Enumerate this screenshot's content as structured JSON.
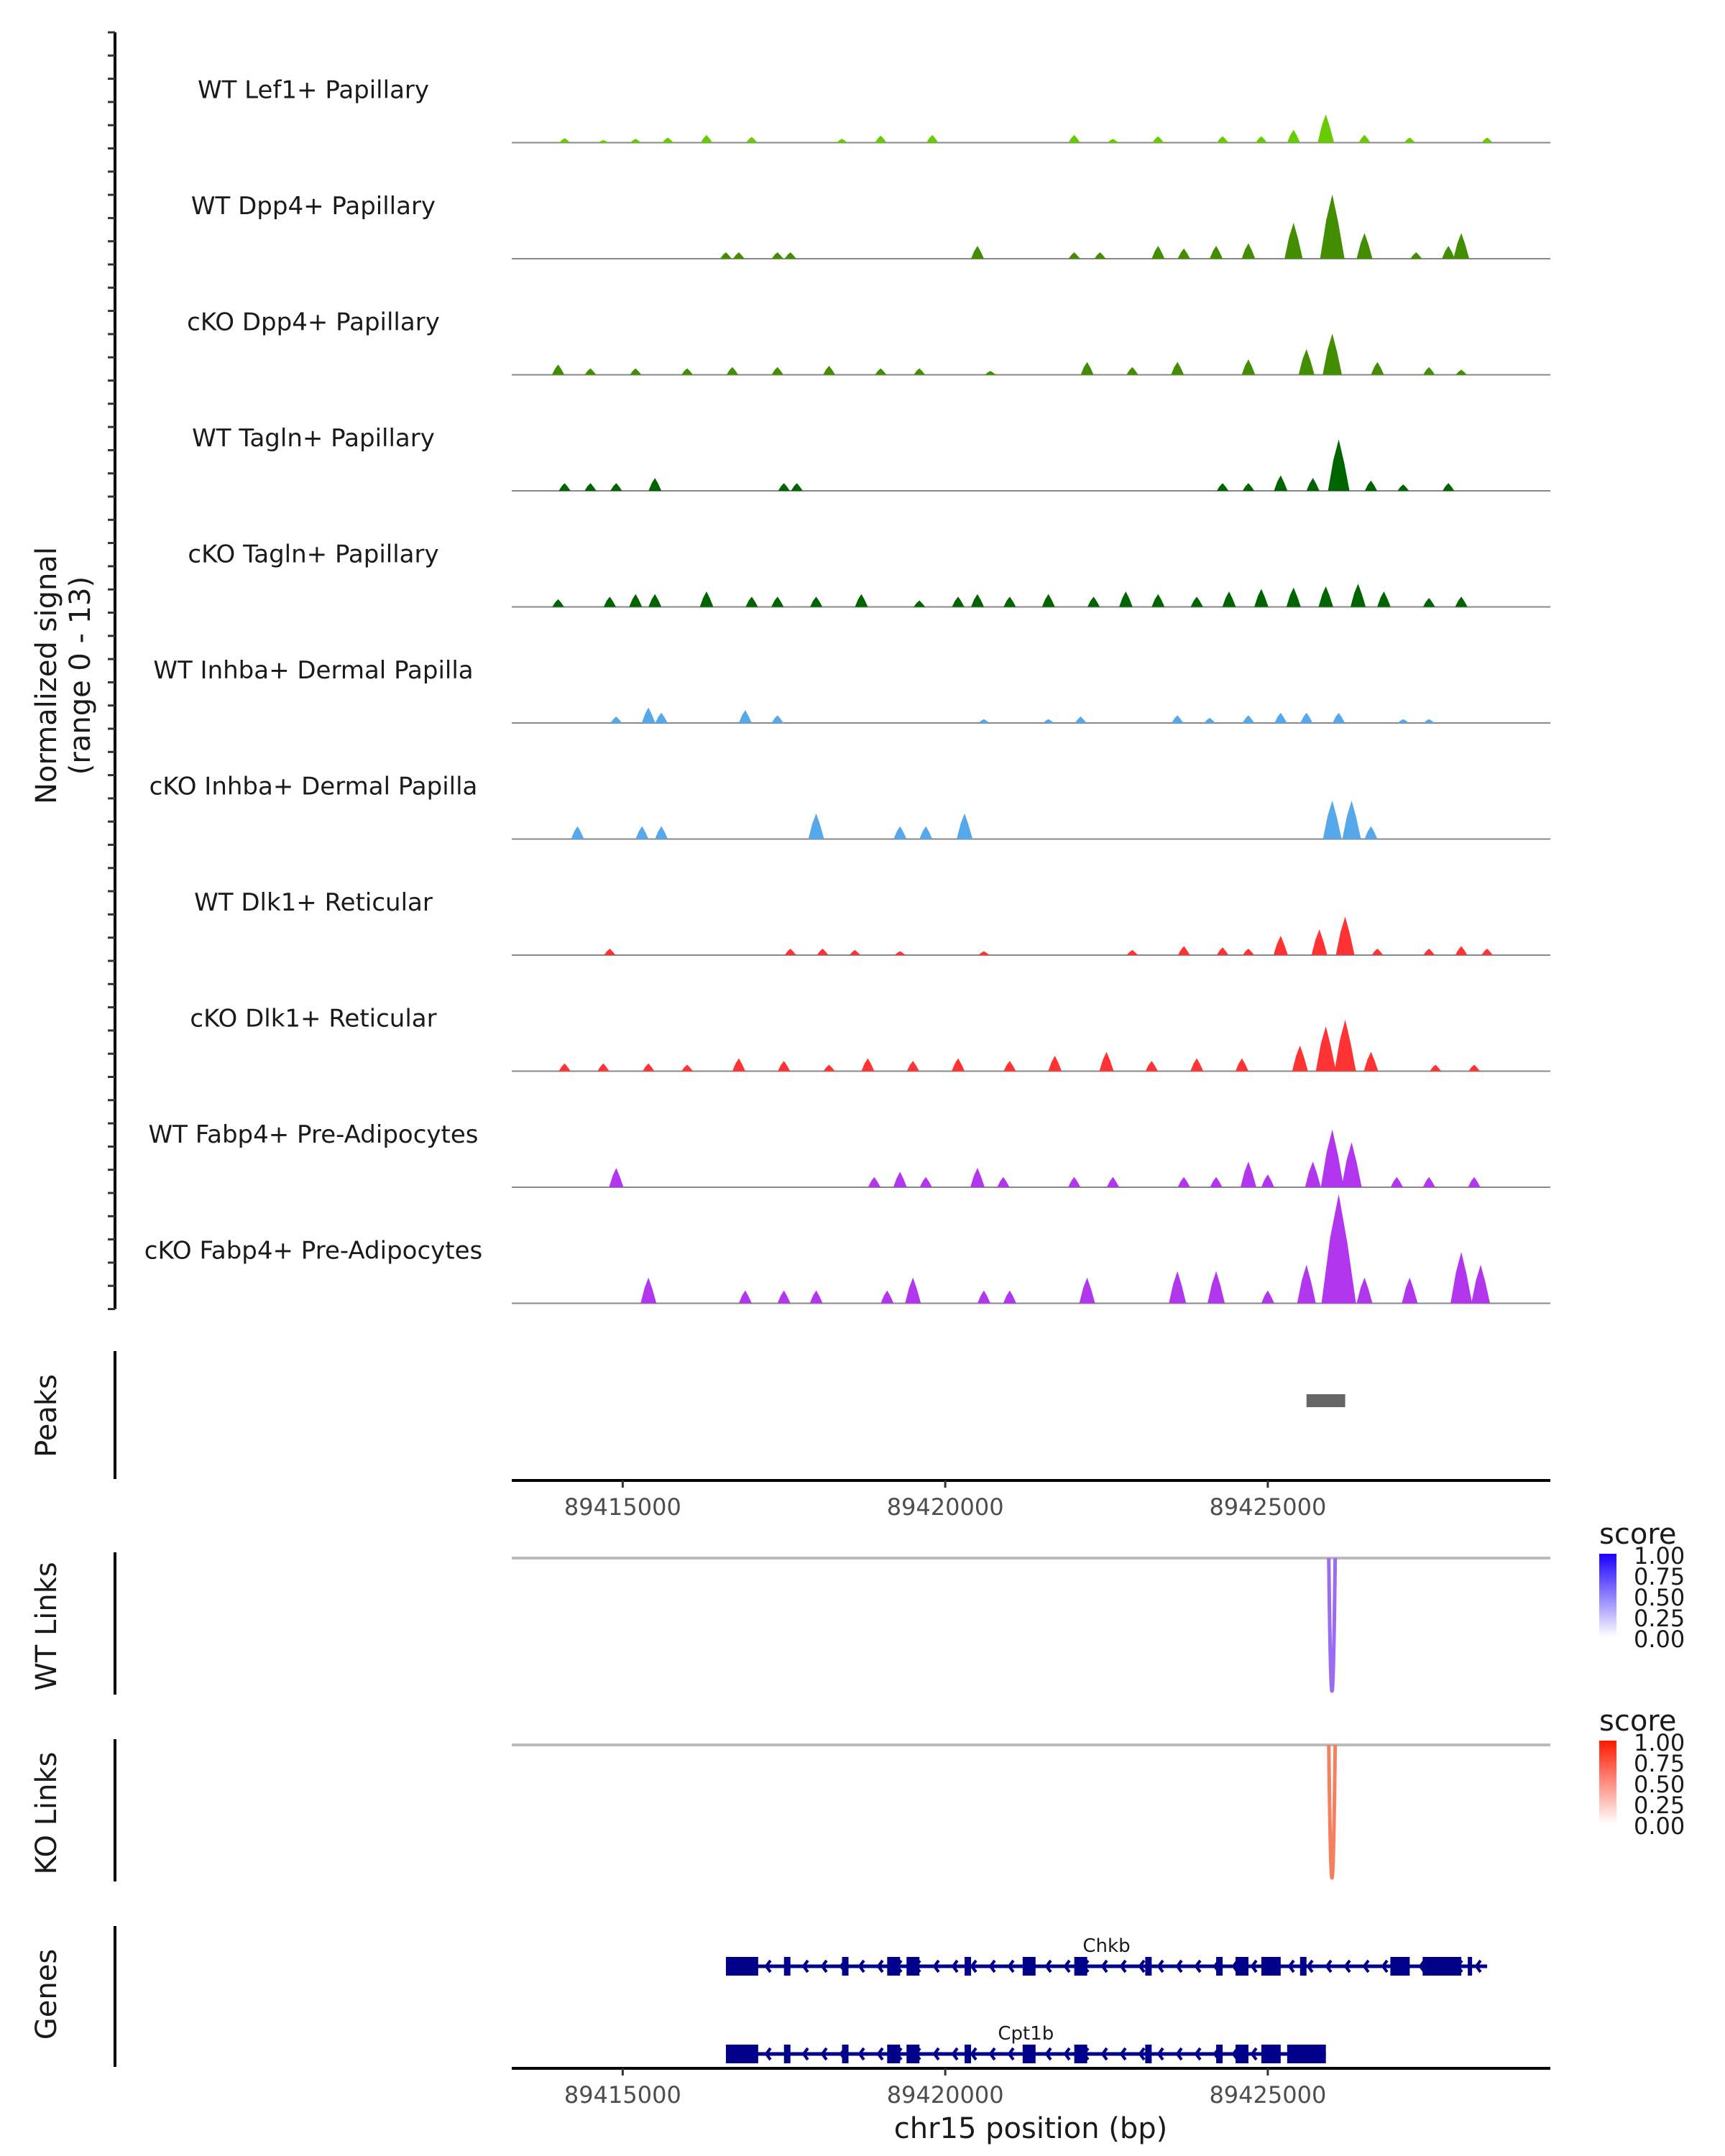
{
  "chart_data": {
    "type": "area",
    "title": "",
    "ylabel": "Normalized signal\n(range 0 - 13)",
    "ylabel_lines": [
      "Normalized signal",
      "(range 0 - 13)"
    ],
    "ylim": [
      0,
      13
    ],
    "xlabel": "chr15 position (bp)",
    "xlim": [
      89413280,
      89429380
    ],
    "x_ticks": [
      89415000,
      89420000,
      89425000
    ],
    "x_tick_labels": [
      "89415000",
      "89420000",
      "89425000"
    ],
    "coverage_tracks": [
      {
        "name": "WT Lef1+ Papillary",
        "color": "#66CC00",
        "peaks": [
          [
            89414100,
            0.35
          ],
          [
            89414700,
            0.2
          ],
          [
            89415200,
            0.3
          ],
          [
            89415700,
            0.4
          ],
          [
            89416300,
            0.6
          ],
          [
            89417000,
            0.45
          ],
          [
            89418400,
            0.3
          ],
          [
            89419000,
            0.55
          ],
          [
            89419800,
            0.6
          ],
          [
            89422000,
            0.6
          ],
          [
            89422600,
            0.3
          ],
          [
            89423300,
            0.5
          ],
          [
            89424300,
            0.5
          ],
          [
            89424900,
            0.5
          ],
          [
            89425400,
            1.0
          ],
          [
            89425900,
            2.2
          ],
          [
            89426500,
            0.6
          ],
          [
            89427200,
            0.4
          ],
          [
            89428400,
            0.4
          ]
        ]
      },
      {
        "name": "WT Dpp4+ Papillary",
        "color": "#438E00",
        "peaks": [
          [
            89416600,
            0.5
          ],
          [
            89416800,
            0.5
          ],
          [
            89417400,
            0.5
          ],
          [
            89417600,
            0.5
          ],
          [
            89420500,
            1.0
          ],
          [
            89422000,
            0.5
          ],
          [
            89422400,
            0.5
          ],
          [
            89423300,
            1.0
          ],
          [
            89423700,
            0.8
          ],
          [
            89424200,
            1.0
          ],
          [
            89424700,
            1.2
          ],
          [
            89425400,
            2.8
          ],
          [
            89426000,
            5.0
          ],
          [
            89426500,
            2.0
          ],
          [
            89427300,
            0.5
          ],
          [
            89427800,
            1.0
          ],
          [
            89428000,
            2.0
          ]
        ]
      },
      {
        "name": "cKO Dpp4+ Papillary",
        "color": "#438E00",
        "peaks": [
          [
            89414000,
            0.8
          ],
          [
            89414500,
            0.5
          ],
          [
            89415200,
            0.5
          ],
          [
            89416000,
            0.5
          ],
          [
            89416700,
            0.6
          ],
          [
            89417400,
            0.6
          ],
          [
            89418200,
            0.7
          ],
          [
            89419000,
            0.5
          ],
          [
            89419600,
            0.5
          ],
          [
            89420700,
            0.3
          ],
          [
            89422200,
            1.0
          ],
          [
            89422900,
            0.6
          ],
          [
            89423600,
            1.0
          ],
          [
            89424700,
            1.2
          ],
          [
            89425600,
            2.0
          ],
          [
            89426000,
            3.2
          ],
          [
            89426700,
            1.0
          ],
          [
            89427500,
            0.6
          ],
          [
            89428000,
            0.4
          ]
        ]
      },
      {
        "name": "WT Tagln+ Papillary",
        "color": "#006400",
        "peaks": [
          [
            89414100,
            0.6
          ],
          [
            89414500,
            0.6
          ],
          [
            89414900,
            0.6
          ],
          [
            89415500,
            1.0
          ],
          [
            89417500,
            0.6
          ],
          [
            89417700,
            0.6
          ],
          [
            89424300,
            0.6
          ],
          [
            89424700,
            0.6
          ],
          [
            89425200,
            1.2
          ],
          [
            89425700,
            1.0
          ],
          [
            89426100,
            4.0
          ],
          [
            89426600,
            0.8
          ],
          [
            89427100,
            0.5
          ],
          [
            89427800,
            0.6
          ]
        ]
      },
      {
        "name": "cKO Tagln+ Papillary",
        "color": "#006400",
        "peaks": [
          [
            89414000,
            0.6
          ],
          [
            89414800,
            0.8
          ],
          [
            89415200,
            1.0
          ],
          [
            89415500,
            1.0
          ],
          [
            89416300,
            1.2
          ],
          [
            89417000,
            0.8
          ],
          [
            89417400,
            0.8
          ],
          [
            89418000,
            0.8
          ],
          [
            89418700,
            1.0
          ],
          [
            89419600,
            0.5
          ],
          [
            89420200,
            0.8
          ],
          [
            89420500,
            1.0
          ],
          [
            89421000,
            0.8
          ],
          [
            89421600,
            1.0
          ],
          [
            89422300,
            0.8
          ],
          [
            89422800,
            1.2
          ],
          [
            89423300,
            1.0
          ],
          [
            89423900,
            0.8
          ],
          [
            89424400,
            1.2
          ],
          [
            89424900,
            1.4
          ],
          [
            89425400,
            1.5
          ],
          [
            89425900,
            1.6
          ],
          [
            89426400,
            1.8
          ],
          [
            89426800,
            1.2
          ],
          [
            89427500,
            0.7
          ],
          [
            89428000,
            0.8
          ]
        ]
      },
      {
        "name": "WT Inhba+ Dermal Papilla",
        "color": "#56A8EA",
        "peaks": [
          [
            89414900,
            0.5
          ],
          [
            89415400,
            1.2
          ],
          [
            89415600,
            0.8
          ],
          [
            89416900,
            1.0
          ],
          [
            89417400,
            0.6
          ],
          [
            89420600,
            0.3
          ],
          [
            89421600,
            0.3
          ],
          [
            89422100,
            0.5
          ],
          [
            89423600,
            0.6
          ],
          [
            89424100,
            0.4
          ],
          [
            89424700,
            0.6
          ],
          [
            89425200,
            0.8
          ],
          [
            89425600,
            0.8
          ],
          [
            89426100,
            0.8
          ],
          [
            89427100,
            0.3
          ],
          [
            89427500,
            0.3
          ]
        ]
      },
      {
        "name": "cKO Inhba+ Dermal Papilla",
        "color": "#56A8EA",
        "peaks": [
          [
            89414300,
            1.0
          ],
          [
            89415300,
            1.0
          ],
          [
            89415600,
            1.0
          ],
          [
            89418000,
            2.0
          ],
          [
            89419300,
            1.0
          ],
          [
            89419700,
            1.0
          ],
          [
            89420300,
            2.0
          ],
          [
            89426000,
            3.0
          ],
          [
            89426300,
            3.0
          ],
          [
            89426600,
            1.0
          ]
        ]
      },
      {
        "name": "WT Dlk1+ Reticular",
        "color": "#FF3333",
        "peaks": [
          [
            89414800,
            0.5
          ],
          [
            89417600,
            0.5
          ],
          [
            89418100,
            0.5
          ],
          [
            89418600,
            0.4
          ],
          [
            89419300,
            0.3
          ],
          [
            89420600,
            0.3
          ],
          [
            89422900,
            0.4
          ],
          [
            89423700,
            0.7
          ],
          [
            89424300,
            0.6
          ],
          [
            89424700,
            0.5
          ],
          [
            89425200,
            1.5
          ],
          [
            89425800,
            2.0
          ],
          [
            89426200,
            3.0
          ],
          [
            89426700,
            0.5
          ],
          [
            89427500,
            0.5
          ],
          [
            89428000,
            0.7
          ],
          [
            89428400,
            0.5
          ]
        ]
      },
      {
        "name": "cKO Dlk1+ Reticular",
        "color": "#FF3333",
        "peaks": [
          [
            89414100,
            0.6
          ],
          [
            89414700,
            0.6
          ],
          [
            89415400,
            0.6
          ],
          [
            89416000,
            0.5
          ],
          [
            89416800,
            1.0
          ],
          [
            89417500,
            0.8
          ],
          [
            89418200,
            0.5
          ],
          [
            89418800,
            1.0
          ],
          [
            89419500,
            0.8
          ],
          [
            89420200,
            1.0
          ],
          [
            89421000,
            0.8
          ],
          [
            89421700,
            1.2
          ],
          [
            89422500,
            1.5
          ],
          [
            89423200,
            0.8
          ],
          [
            89423900,
            1.0
          ],
          [
            89424600,
            1.0
          ],
          [
            89425500,
            2.0
          ],
          [
            89425900,
            3.5
          ],
          [
            89426200,
            4.0
          ],
          [
            89426600,
            1.5
          ],
          [
            89427600,
            0.5
          ],
          [
            89428200,
            0.5
          ]
        ]
      },
      {
        "name": "WT Fabp4+ Pre-Adipocytes",
        "color": "#B236EE",
        "peaks": [
          [
            89414900,
            1.5
          ],
          [
            89418900,
            0.8
          ],
          [
            89419300,
            1.2
          ],
          [
            89419700,
            0.8
          ],
          [
            89420500,
            1.5
          ],
          [
            89420900,
            0.8
          ],
          [
            89422000,
            0.8
          ],
          [
            89422600,
            0.8
          ],
          [
            89423700,
            0.8
          ],
          [
            89424200,
            0.8
          ],
          [
            89424700,
            2.0
          ],
          [
            89425000,
            1.0
          ],
          [
            89425700,
            2.0
          ],
          [
            89426000,
            4.5
          ],
          [
            89426300,
            3.5
          ],
          [
            89427000,
            0.8
          ],
          [
            89427500,
            0.8
          ],
          [
            89428200,
            0.8
          ]
        ]
      },
      {
        "name": "cKO Fabp4+ Pre-Adipocytes",
        "color": "#B236EE",
        "peaks": [
          [
            89415400,
            2.0
          ],
          [
            89416900,
            1.0
          ],
          [
            89417500,
            1.0
          ],
          [
            89418000,
            1.0
          ],
          [
            89419100,
            1.0
          ],
          [
            89419500,
            2.0
          ],
          [
            89420600,
            1.0
          ],
          [
            89421000,
            1.0
          ],
          [
            89422200,
            2.0
          ],
          [
            89423600,
            2.5
          ],
          [
            89424200,
            2.5
          ],
          [
            89425000,
            1.0
          ],
          [
            89425600,
            3.0
          ],
          [
            89426100,
            8.5
          ],
          [
            89426500,
            2.0
          ],
          [
            89427200,
            2.0
          ],
          [
            89428000,
            4.0
          ],
          [
            89428300,
            3.0
          ]
        ]
      }
    ],
    "peaks_track": {
      "label": "Peaks",
      "color": "#666666",
      "regions": [
        [
          89425600,
          89426200
        ]
      ]
    },
    "link_tracks": [
      {
        "label": "WT Links",
        "color": "#9B6BF2",
        "links": [
          {
            "start": 89425990,
            "end": 89426000,
            "score": 0.6
          }
        ],
        "legend": {
          "title": "score",
          "low_color": "#FFFFFF",
          "high_color": "#1A00FF",
          "ticks": [
            "1.00",
            "0.75",
            "0.50",
            "0.25",
            "0.00"
          ]
        }
      },
      {
        "label": "KO Links",
        "color": "#F58060",
        "links": [
          {
            "start": 89425990,
            "end": 89426000,
            "score": 0.55
          }
        ],
        "legend": {
          "title": "score",
          "low_color": "#FFFFFF",
          "high_color": "#FF1A00",
          "ticks": [
            "1.00",
            "0.75",
            "0.50",
            "0.25",
            "0.00"
          ]
        }
      }
    ],
    "genes_track": {
      "label": "Genes",
      "color": "#00008B",
      "genes": [
        {
          "name": "Chkb",
          "start": 89416600,
          "end": 89428400,
          "strand": "-",
          "exons": [
            [
              89416600,
              89417100
            ],
            [
              89417500,
              89417600
            ],
            [
              89418400,
              89418500
            ],
            [
              89419100,
              89419300
            ],
            [
              89419400,
              89419600
            ],
            [
              89420300,
              89420400
            ],
            [
              89421200,
              89421400
            ],
            [
              89422000,
              89422200
            ],
            [
              89423100,
              89423200
            ],
            [
              89424200,
              89424300
            ],
            [
              89424500,
              89424700
            ],
            [
              89424900,
              89425200
            ],
            [
              89425500,
              89425600
            ],
            [
              89426900,
              89427200
            ],
            [
              89427400,
              89428000
            ],
            [
              89428100,
              89428150
            ]
          ]
        },
        {
          "name": "Cpt1b",
          "start": 89416600,
          "end": 89425900,
          "strand": "-",
          "exons": [
            [
              89416600,
              89417100
            ],
            [
              89417500,
              89417600
            ],
            [
              89418400,
              89418500
            ],
            [
              89419100,
              89419300
            ],
            [
              89419400,
              89419600
            ],
            [
              89420300,
              89420400
            ],
            [
              89421200,
              89421400
            ],
            [
              89422000,
              89422200
            ],
            [
              89423100,
              89423200
            ],
            [
              89424200,
              89424300
            ],
            [
              89424500,
              89424700
            ],
            [
              89424900,
              89425200
            ],
            [
              89425300,
              89425900
            ]
          ]
        }
      ]
    }
  }
}
